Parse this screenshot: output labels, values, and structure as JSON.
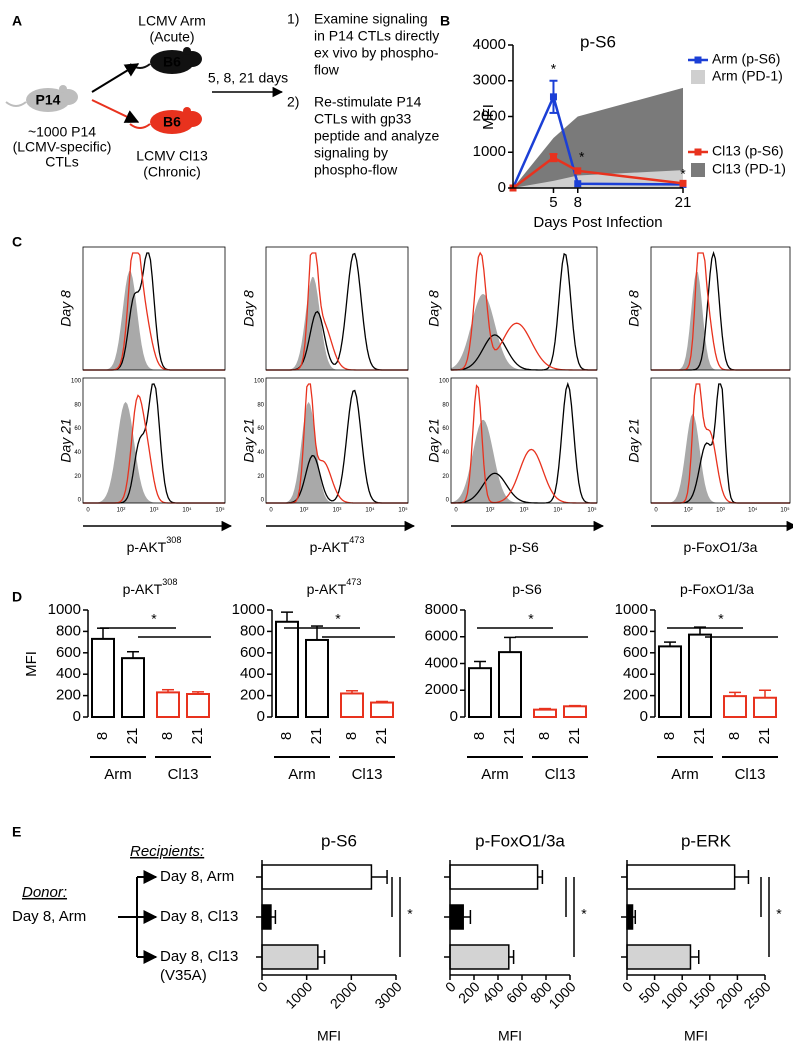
{
  "panel_labels": [
    "A",
    "B",
    "C",
    "D",
    "E"
  ],
  "panel_a": {
    "mouse": "P14",
    "donor": [
      "~1000 P14",
      "(LCMV-specific)",
      "CTLs"
    ],
    "arm": [
      "LCMV Arm",
      "(Acute)"
    ],
    "cl13": [
      "LCMV Cl13",
      "(Chronic)"
    ],
    "arm_mouse": "B6",
    "cl13_mouse": "B6",
    "timing": "5, 8, 21 days",
    "steps": [
      {
        "num": "1)",
        "lines": [
          "Examine signaling",
          "in P14 CTLs directly",
          "ex vivo by phospho-",
          "flow"
        ]
      },
      {
        "num": "2)",
        "lines": [
          "Re-stimulate P14",
          "CTLs with gp33",
          "peptide and analyze",
          "signaling by",
          "phospho-flow"
        ]
      }
    ]
  },
  "flow": {
    "rows": [
      "Day 8",
      "Day 21"
    ],
    "markers": [
      {
        "text": "p-AKT",
        "sup": "308"
      },
      {
        "text": "p-AKT",
        "sup": "473"
      },
      {
        "text": "p-S6"
      },
      {
        "text": "p-FoxO1/3a"
      }
    ],
    "x_tick_labels": [
      "0",
      "10²",
      "10³",
      "10⁴",
      "10⁵"
    ],
    "y_tick_labels": [
      "100",
      "80",
      "60",
      "40",
      "20",
      "0"
    ]
  },
  "panel_e": {
    "recipients_label": "Recipients:",
    "donor_label": "Donor:",
    "donor": "Day 8, Arm",
    "recipients": [
      "Day 8, Arm",
      "Day 8, Cl13",
      "Day 8, Cl13"
    ],
    "recipient_note": "(V35A)"
  },
  "chart_data": [
    {
      "type": "line",
      "title": "p-S6",
      "xlabel": "Days Post Infection",
      "ylabel": "MFI",
      "x": [
        0,
        5,
        8,
        21
      ],
      "xlim": [
        0,
        21
      ],
      "xticks": [
        5,
        8,
        21
      ],
      "ylim": [
        0,
        4000
      ],
      "yticks": [
        0,
        1000,
        2000,
        3000,
        4000
      ],
      "series": [
        {
          "name": "Arm (p-S6)",
          "kind": "line",
          "color": "#1b3fd6",
          "values": [
            0,
            2550,
            120,
            100
          ],
          "errors": [
            null,
            450,
            null,
            null
          ]
        },
        {
          "name": "Arm (PD-1)",
          "kind": "area",
          "color": "#cfcfcf",
          "values": [
            0,
            200,
            350,
            500
          ]
        },
        {
          "name": "Cl13 (p-S6)",
          "kind": "line",
          "color": "#e8321e",
          "values": [
            0,
            850,
            480,
            130
          ],
          "errors": [
            null,
            100,
            null,
            null
          ]
        },
        {
          "name": "Cl13 (PD-1)",
          "kind": "area",
          "color": "#7a7a7a",
          "values": [
            0,
            1400,
            2000,
            2800
          ]
        }
      ],
      "annotations": [
        {
          "text": "*",
          "x": 5
        },
        {
          "text": "*",
          "x": 8
        },
        {
          "text": "*",
          "x": 21
        }
      ]
    },
    {
      "type": "bar",
      "title": "p-AKT",
      "title_sup": "308",
      "ylabel": "MFI",
      "categories": [
        "8",
        "21",
        "8",
        "21"
      ],
      "groups": [
        "Arm",
        "Cl13"
      ],
      "values": [
        730,
        550,
        230,
        215
      ],
      "errors": [
        100,
        60,
        25,
        20
      ],
      "colors": [
        "#000000",
        "#000000",
        "#e8321e",
        "#e8321e"
      ],
      "ylim": [
        0,
        1000
      ],
      "yticks": [
        0,
        200,
        400,
        600,
        800,
        1000
      ],
      "annotation": "*"
    },
    {
      "type": "bar",
      "title": "p-AKT",
      "title_sup": "473",
      "categories": [
        "8",
        "21",
        "8",
        "21"
      ],
      "groups": [
        "Arm",
        "Cl13"
      ],
      "values": [
        890,
        720,
        220,
        135
      ],
      "errors": [
        90,
        130,
        25,
        10
      ],
      "colors": [
        "#000000",
        "#000000",
        "#e8321e",
        "#e8321e"
      ],
      "ylim": [
        0,
        1000
      ],
      "yticks": [
        0,
        200,
        400,
        600,
        800,
        1000
      ],
      "annotation": "*"
    },
    {
      "type": "bar",
      "title": "p-S6",
      "categories": [
        "8",
        "21",
        "8",
        "21"
      ],
      "groups": [
        "Arm",
        "Cl13"
      ],
      "values": [
        3650,
        4850,
        550,
        800
      ],
      "errors": [
        500,
        1100,
        80,
        50
      ],
      "colors": [
        "#000000",
        "#000000",
        "#e8321e",
        "#e8321e"
      ],
      "ylim": [
        0,
        8000
      ],
      "yticks": [
        0,
        2000,
        4000,
        6000,
        8000
      ],
      "annotation": "*"
    },
    {
      "type": "bar",
      "title": "p-FoxO1/3a",
      "categories": [
        "8",
        "21",
        "8",
        "21"
      ],
      "groups": [
        "Arm",
        "Cl13"
      ],
      "values": [
        660,
        770,
        195,
        180
      ],
      "errors": [
        40,
        70,
        35,
        70
      ],
      "colors": [
        "#000000",
        "#000000",
        "#e8321e",
        "#e8321e"
      ],
      "ylim": [
        0,
        1000
      ],
      "yticks": [
        0,
        200,
        400,
        600,
        800,
        1000
      ],
      "annotation": "*"
    },
    {
      "type": "barh",
      "title": "p-S6",
      "xlabel": "MFI",
      "values": [
        2450,
        200,
        1250
      ],
      "errors": [
        350,
        100,
        150
      ],
      "colors": [
        "#ffffff",
        "#000000",
        "#d3d3d3"
      ],
      "xlim": [
        0,
        3000
      ],
      "xticks": [
        0,
        1000,
        2000,
        3000
      ],
      "annotation": "*"
    },
    {
      "type": "barh",
      "title": "p-FoxO1/3a",
      "xlabel": "MFI",
      "values": [
        730,
        110,
        490
      ],
      "errors": [
        40,
        60,
        40
      ],
      "colors": [
        "#ffffff",
        "#000000",
        "#d3d3d3"
      ],
      "xlim": [
        0,
        1000
      ],
      "xticks": [
        0,
        200,
        400,
        600,
        800,
        1000
      ],
      "annotation": "*"
    },
    {
      "type": "barh",
      "title": "p-ERK",
      "xlabel": "MFI",
      "values": [
        1950,
        100,
        1150
      ],
      "errors": [
        250,
        50,
        150
      ],
      "colors": [
        "#ffffff",
        "#000000",
        "#d3d3d3"
      ],
      "xlim": [
        0,
        2500
      ],
      "xticks": [
        0,
        500,
        1000,
        1500,
        2000,
        2500
      ],
      "annotation": "*"
    }
  ]
}
